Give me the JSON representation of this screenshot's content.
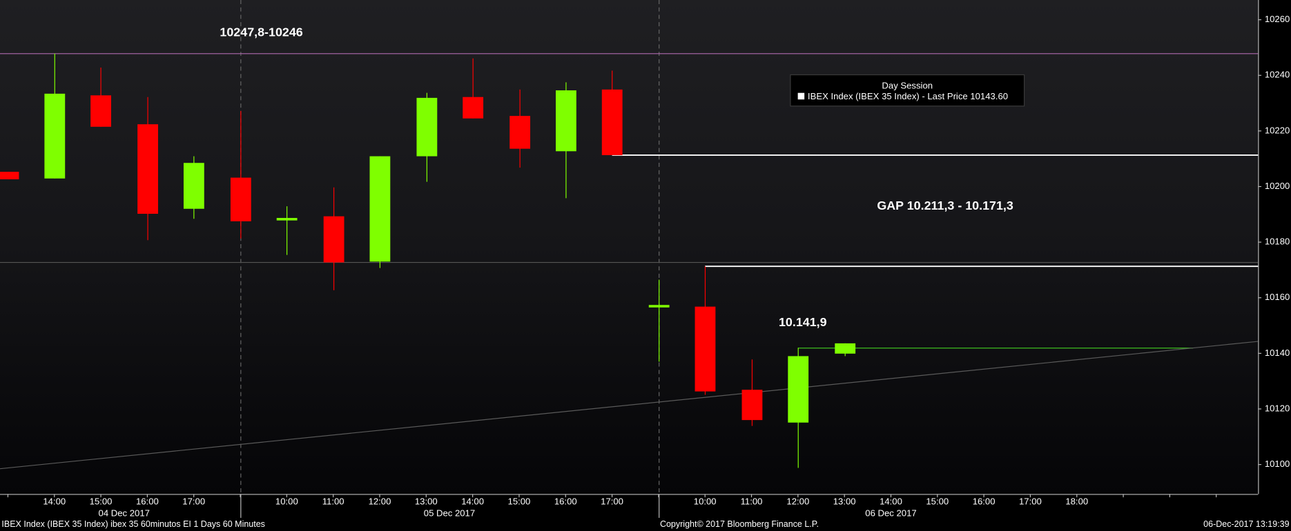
{
  "chart_data": {
    "type": "candlestick",
    "categories": [
      null,
      "14:00",
      "15:00",
      "16:00",
      "17:00",
      null,
      "10:00",
      "11:00",
      "12:00",
      "13:00",
      "14:00",
      "15:00",
      "16:00",
      "17:00",
      null,
      "10:00",
      "11:00",
      "12:00",
      "13:00",
      "14:00",
      "15:00",
      "16:00",
      "17:00",
      "18:00",
      null,
      null,
      null
    ],
    "dates": [
      "04 Dec 2017",
      "05 Dec 2017",
      "06 Dec 2017"
    ],
    "session_breaks": [
      5,
      14
    ],
    "open": [
      10205.3,
      10202.9,
      10232.8,
      10222.4,
      10192.0,
      10203.2,
      10188.0,
      10189.3,
      10173.0,
      10210.9,
      10232.2,
      10225.4,
      10212.7,
      10234.9,
      10156.8,
      10156.8,
      10126.9,
      10115.1,
      10139.9,
      null,
      null,
      null,
      null,
      null,
      null,
      null,
      null
    ],
    "high": [
      10205.3,
      10247.8,
      10242.8,
      10232.2,
      10210.9,
      10227.2,
      10192.9,
      10199.7,
      10210.9,
      10233.7,
      10246.1,
      10234.9,
      10237.5,
      10241.7,
      10166.5,
      10171.3,
      10137.8,
      10142.0,
      10143.6,
      null,
      null,
      null,
      null,
      null,
      null,
      null,
      null
    ],
    "low": [
      10202.6,
      10202.9,
      10221.5,
      10180.7,
      10188.4,
      10181.3,
      10175.4,
      10162.7,
      10170.7,
      10201.7,
      10224.5,
      10206.8,
      10195.8,
      10211.3,
      10137.0,
      10125.1,
      10113.9,
      10098.8,
      10139.0,
      null,
      null,
      null,
      null,
      null,
      null,
      null,
      null
    ],
    "close": [
      10202.6,
      10233.4,
      10221.5,
      10190.2,
      10208.5,
      10187.5,
      10188.7,
      10172.7,
      10210.9,
      10231.9,
      10224.5,
      10213.6,
      10234.6,
      10211.3,
      10157.4,
      10126.3,
      10116.0,
      10139.0,
      10143.6,
      null,
      null,
      null,
      null,
      null,
      null,
      null,
      null
    ],
    "up_color": "#7fff00",
    "down_color": "#ff0000",
    "xlim": [
      -0.17,
      26.9
    ],
    "ylim": [
      10089.4,
      10267.1
    ],
    "yticks": [
      10100,
      10120,
      10140,
      10160,
      10180,
      10200,
      10220,
      10240,
      10260
    ],
    "lines": [
      {
        "x": [
          -0.17,
          26.9
        ],
        "y": [
          10247.8,
          10247.8
        ],
        "color": "#b06ab0"
      },
      {
        "x": [
          -0.17,
          26.9
        ],
        "y": [
          10172.7,
          10172.7
        ],
        "color": "#555555"
      },
      {
        "x": [
          13,
          26.9
        ],
        "y": [
          10211.3,
          10211.3
        ],
        "color": "#ffffff"
      },
      {
        "x": [
          15,
          26.9
        ],
        "y": [
          10171.3,
          10171.3
        ],
        "color": "#ffffff"
      },
      {
        "x": [
          17,
          25.5
        ],
        "y": [
          10141.9,
          10141.9
        ],
        "color": "#3fbf1f"
      },
      {
        "x": [
          -0.17,
          26.9
        ],
        "y": [
          10098.5,
          10144.3
        ],
        "color": "#5a5a5a"
      }
    ],
    "annotations": [
      "10247,8-10246",
      "GAP 10.211,3 - 10.171,3",
      "10.141,9"
    ],
    "legend": {
      "title": "Day Session",
      "entries": [
        "IBEX Index (IBEX 35 Index) - Last Price 10143.60"
      ]
    },
    "footer": {
      "left": "IBEX Index (IBEX 35 Index) ibex 35 60minutos EI 1 Days 60 Minutes",
      "center": "Copyright© 2017 Bloomberg Finance L.P.",
      "right": "06-Dec-2017 13:19:39"
    }
  }
}
